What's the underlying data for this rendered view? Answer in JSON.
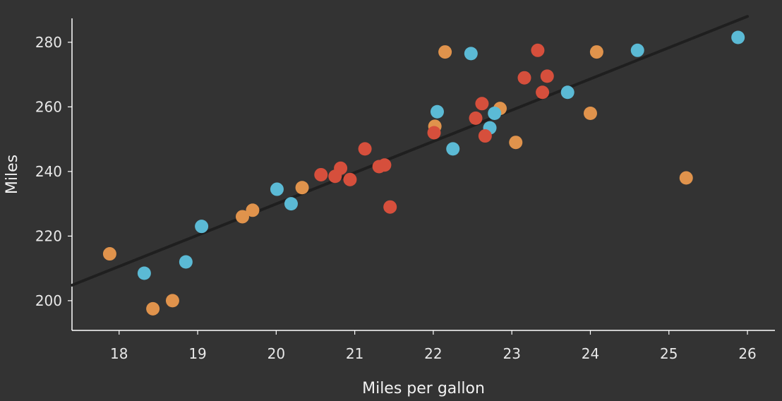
{
  "chart_data": {
    "type": "scatter",
    "xlabel": "Miles per gallon",
    "ylabel": "Miles",
    "xlim": [
      17.4,
      26.35
    ],
    "ylim": [
      190.8,
      287.4
    ],
    "xticks": [
      18,
      19,
      20,
      21,
      22,
      23,
      24,
      25,
      26
    ],
    "yticks": [
      200,
      220,
      240,
      260,
      280
    ],
    "grid": false,
    "trendline": {
      "x": [
        17.4,
        26.0
      ],
      "y": [
        204.8,
        288.0
      ],
      "color": "#1f1f1f"
    },
    "series": [
      {
        "color": "#e0934c",
        "points": [
          [
            17.88,
            214.5
          ],
          [
            18.43,
            197.5
          ],
          [
            18.68,
            200.0
          ],
          [
            19.57,
            226.0
          ],
          [
            19.7,
            228.0
          ],
          [
            20.33,
            235.0
          ],
          [
            22.02,
            254.0
          ],
          [
            22.15,
            277.0
          ],
          [
            22.85,
            259.5
          ],
          [
            23.05,
            249.0
          ],
          [
            24.0,
            258.0
          ],
          [
            24.08,
            277.0
          ],
          [
            25.22,
            238.0
          ]
        ]
      },
      {
        "color": "#5bbad5",
        "points": [
          [
            18.32,
            208.5
          ],
          [
            18.85,
            212.0
          ],
          [
            19.05,
            223.0
          ],
          [
            20.01,
            234.5
          ],
          [
            20.19,
            230.0
          ],
          [
            22.05,
            258.5
          ],
          [
            22.25,
            247.0
          ],
          [
            22.48,
            276.5
          ],
          [
            22.72,
            253.5
          ],
          [
            22.78,
            258.0
          ],
          [
            23.71,
            264.5
          ],
          [
            24.6,
            277.5
          ],
          [
            25.88,
            281.5
          ]
        ]
      },
      {
        "color": "#d64f3c",
        "points": [
          [
            20.57,
            239.0
          ],
          [
            20.75,
            238.5
          ],
          [
            20.82,
            241.0
          ],
          [
            20.94,
            237.5
          ],
          [
            21.13,
            247.0
          ],
          [
            21.31,
            241.5
          ],
          [
            21.38,
            242.0
          ],
          [
            21.45,
            229.0
          ],
          [
            22.01,
            252.0
          ],
          [
            22.54,
            256.5
          ],
          [
            22.62,
            261.0
          ],
          [
            22.66,
            251.0
          ],
          [
            23.16,
            269.0
          ],
          [
            23.33,
            277.5
          ],
          [
            23.39,
            264.5
          ],
          [
            23.45,
            269.5
          ]
        ]
      }
    ]
  }
}
